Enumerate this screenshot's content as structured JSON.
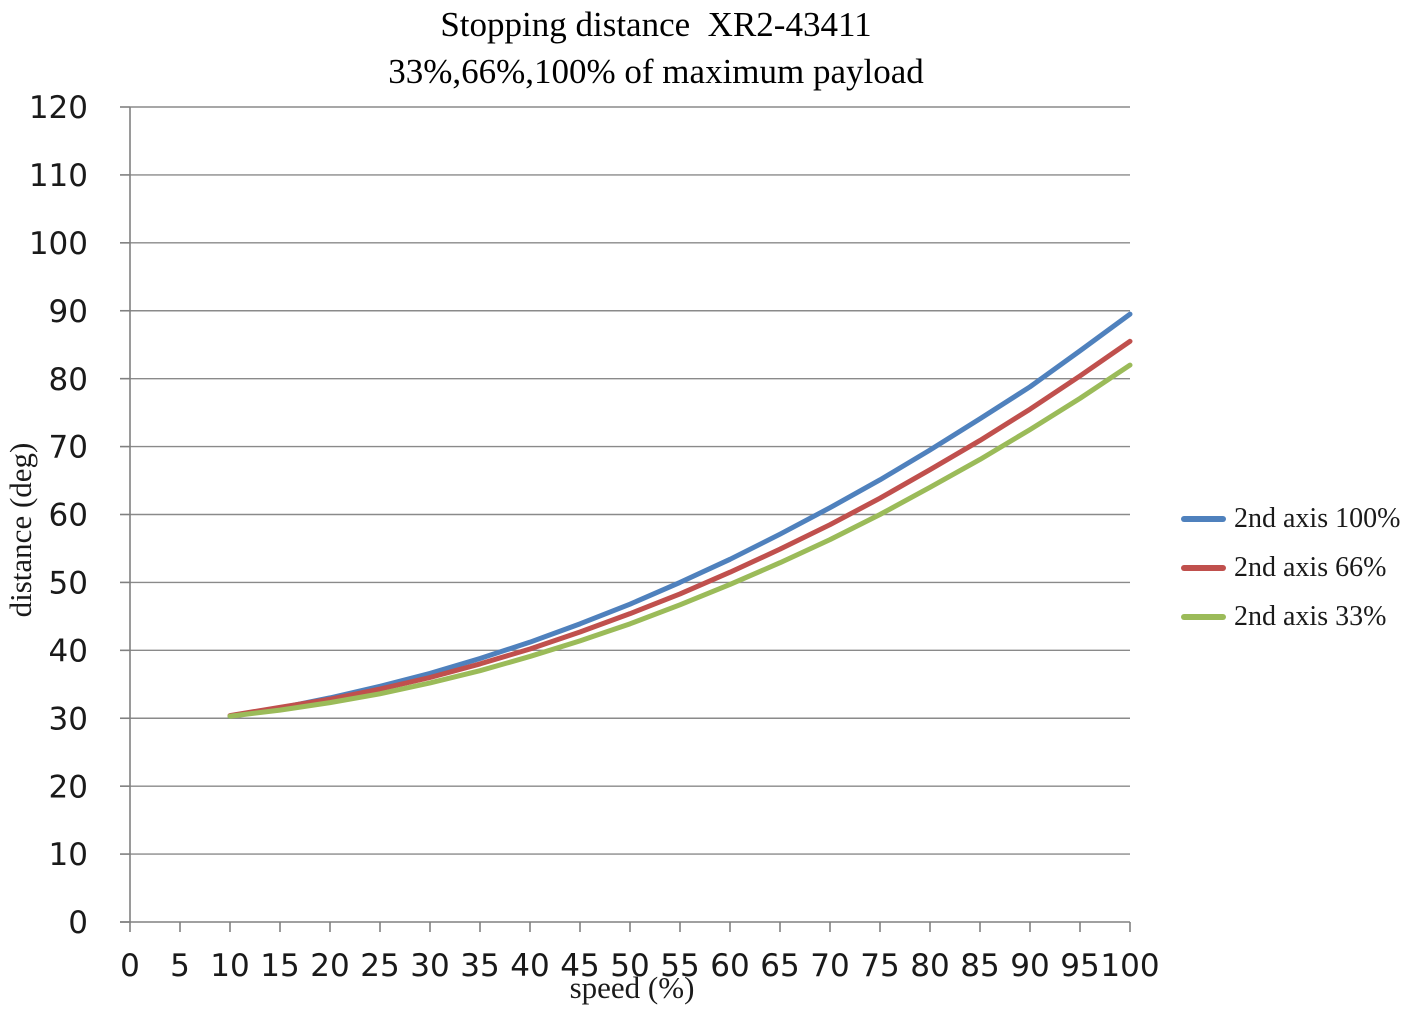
{
  "chart_data": {
    "type": "line",
    "title": "Stopping distance  XR2-43411",
    "subtitle": "33%,66%,100% of maximum payload",
    "xlabel": "speed (%)",
    "ylabel": "distance (deg)",
    "xlim": [
      0,
      100
    ],
    "ylim": [
      0,
      120
    ],
    "x_tick_step": 5,
    "y_tick_step": 10,
    "grid": "horizontal-only",
    "legend_position": "right",
    "x": [
      10,
      15,
      20,
      25,
      30,
      35,
      40,
      45,
      50,
      55,
      60,
      65,
      70,
      75,
      80,
      85,
      90,
      95,
      100
    ],
    "series": [
      {
        "name": "2nd axis 100%",
        "color": "#4F81BD",
        "values": [
          30.3,
          31.5,
          33.0,
          34.7,
          36.6,
          38.8,
          41.2,
          43.9,
          46.8,
          50.0,
          53.4,
          57.1,
          61.0,
          65.1,
          69.5,
          74.1,
          78.8,
          84.1,
          89.5
        ]
      },
      {
        "name": "2nd axis 66%",
        "color": "#C0504D",
        "values": [
          30.4,
          31.6,
          32.8,
          34.3,
          36.0,
          38.0,
          40.2,
          42.7,
          45.4,
          48.3,
          51.5,
          54.9,
          58.5,
          62.4,
          66.6,
          70.9,
          75.5,
          80.4,
          85.5
        ]
      },
      {
        "name": "2nd axis 33%",
        "color": "#9BBB59",
        "values": [
          30.3,
          31.2,
          32.3,
          33.6,
          35.2,
          37.0,
          39.1,
          41.4,
          43.9,
          46.7,
          49.7,
          52.9,
          56.3,
          60.0,
          64.0,
          68.1,
          72.5,
          77.1,
          82.0
        ]
      }
    ],
    "colors": {
      "gridline": "#8A8A8A",
      "axis": "#808080",
      "tick_label": "#1A1A1A",
      "title": "#000000"
    }
  }
}
